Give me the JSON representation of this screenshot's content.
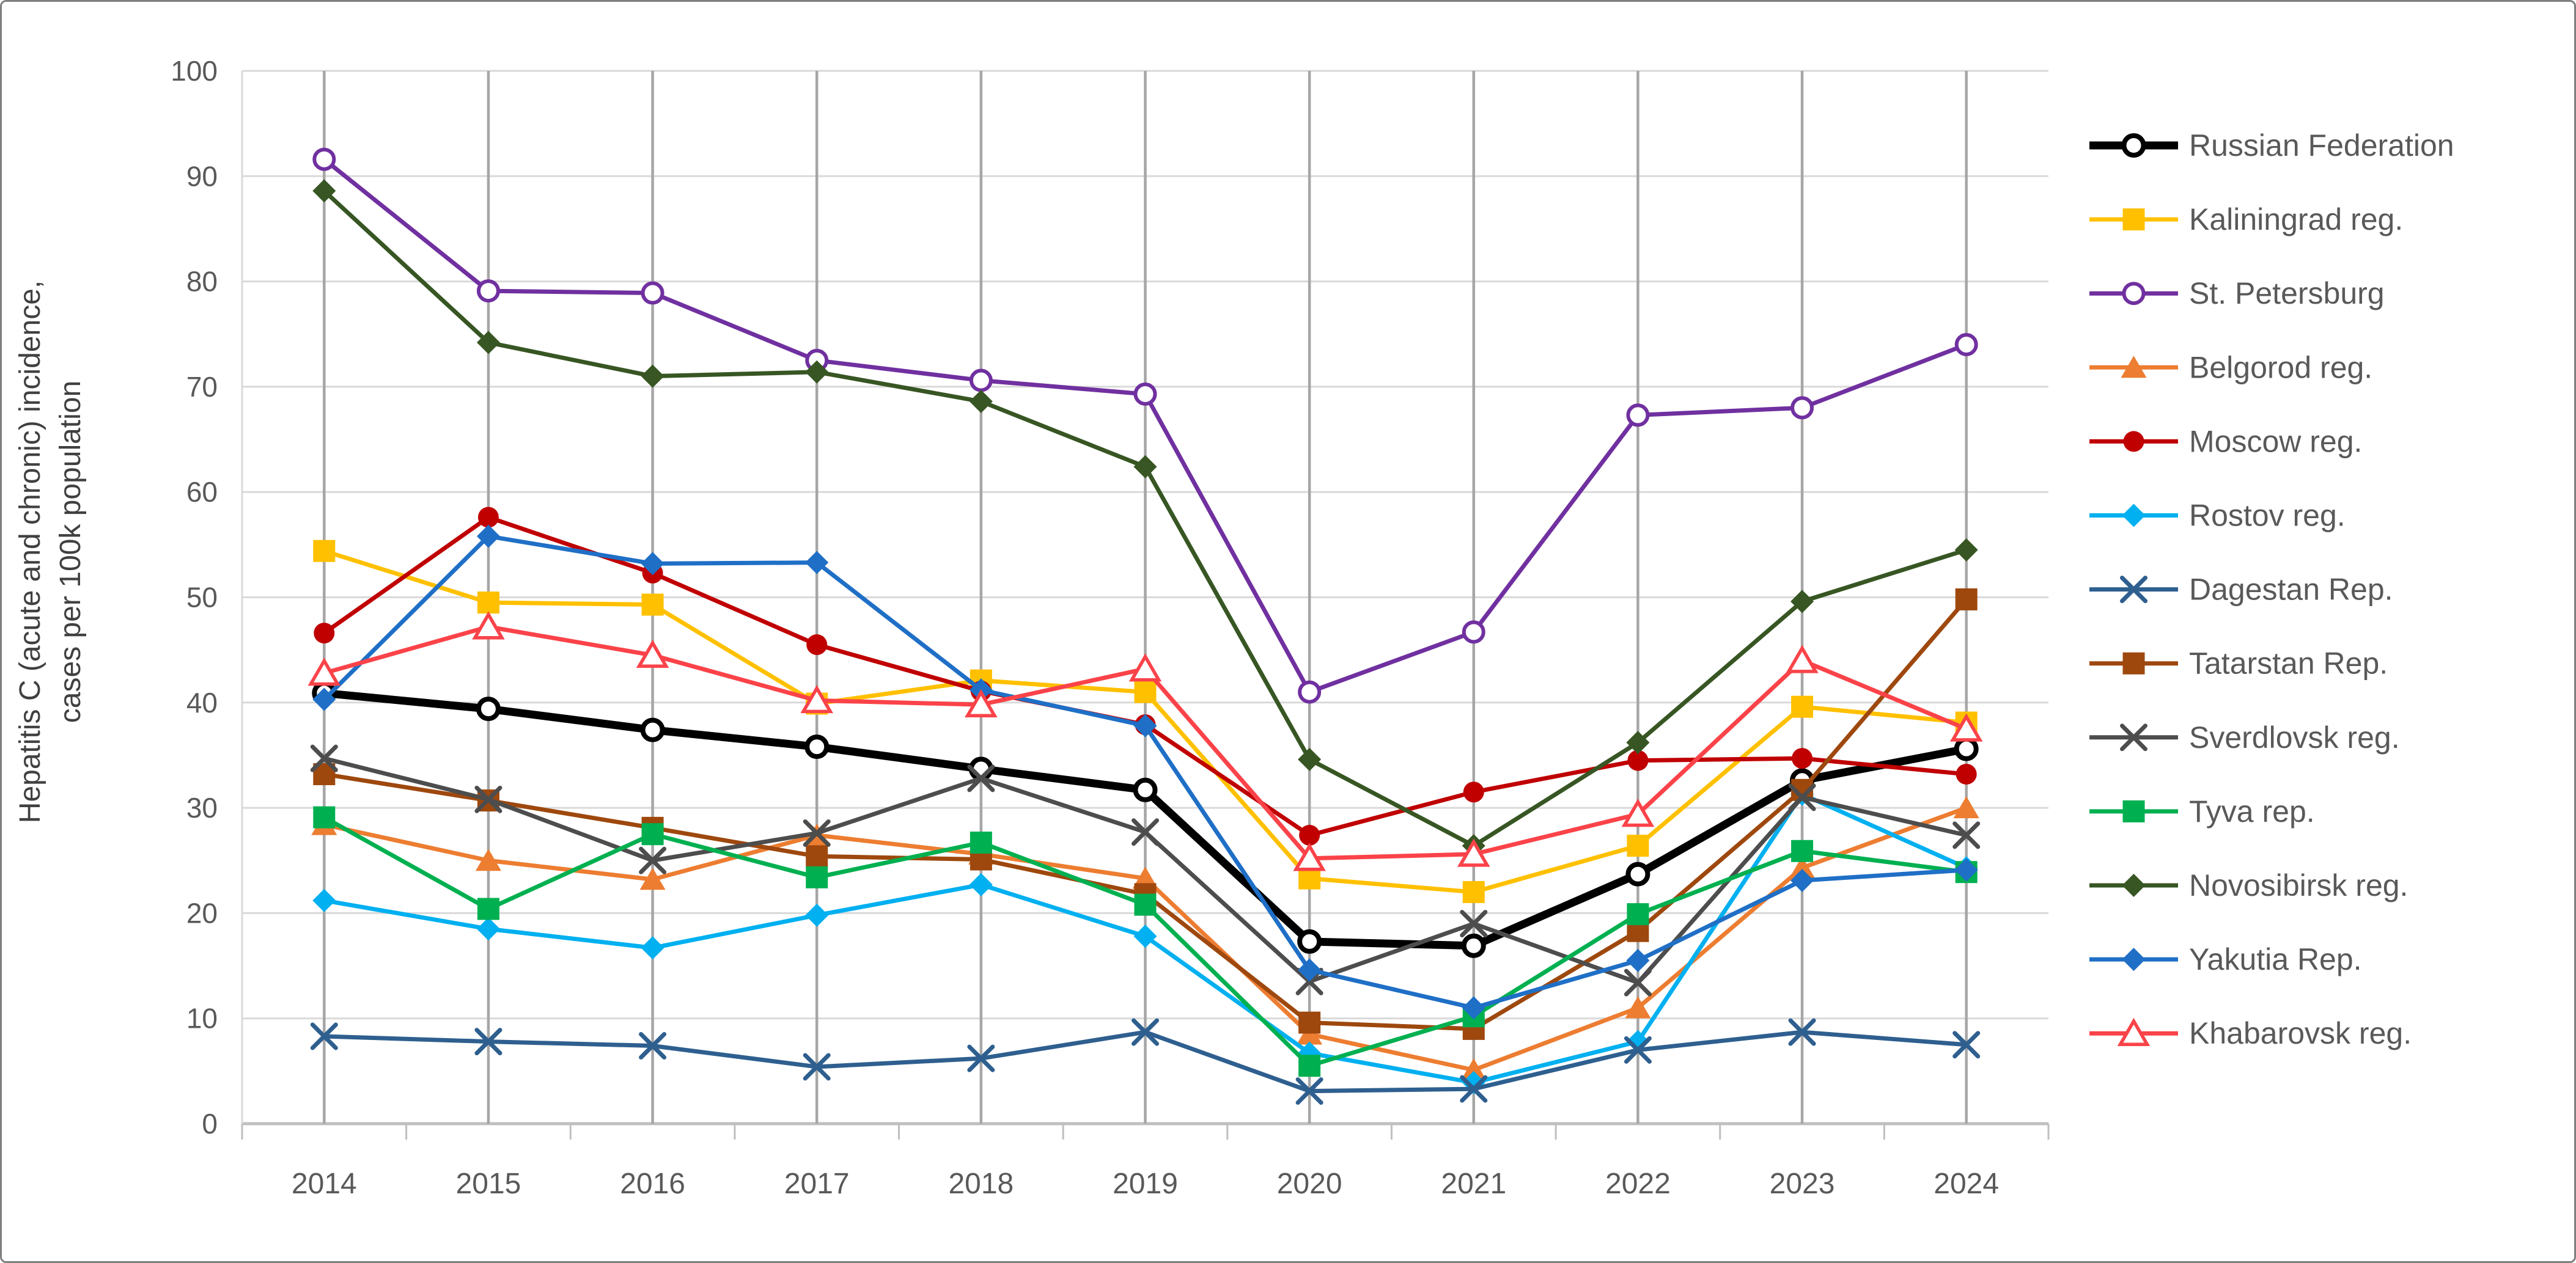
{
  "chart_data": {
    "type": "line",
    "title": "",
    "ylabel_line1": "Hepatitis C (acute and chronic)  incidence,",
    "ylabel_line2": "cases per 100k population",
    "xlabel": "",
    "x_labels": [
      "2014",
      "2015",
      "2016",
      "2017",
      "2018",
      "2019",
      "2020",
      "2021",
      "2022",
      "2023",
      "2024"
    ],
    "y_ticks": [
      "0",
      "10",
      "20",
      "30",
      "40",
      "50",
      "60",
      "70",
      "80",
      "90",
      "100"
    ],
    "ylim": [
      0,
      100
    ],
    "grid": "horizontal gridlines every 10 plus vertical gray line at each year",
    "legend_position": "right",
    "series": [
      {
        "name": "Russian Federation",
        "color": "#000000",
        "marker": "open-circle",
        "line_width": 13,
        "values": [
          40.9,
          39.4,
          37.4,
          35.8,
          33.7,
          31.7,
          17.3,
          16.9,
          23.7,
          32.6,
          35.6
        ]
      },
      {
        "name": "Kaliningrad reg.",
        "color": "#FFC000",
        "marker": "square",
        "line_width": 7,
        "values": [
          54.4,
          49.5,
          49.3,
          39.9,
          42.1,
          41.0,
          23.3,
          22.0,
          26.4,
          39.6,
          38.1
        ]
      },
      {
        "name": "St. Petersburg",
        "color": "#7030A0",
        "marker": "open-circle",
        "line_width": 7,
        "values": [
          91.6,
          79.1,
          78.9,
          72.5,
          70.6,
          69.3,
          41.0,
          46.7,
          67.3,
          68.0,
          74.0
        ]
      },
      {
        "name": "Belgorod reg.",
        "color": "#ED7D31",
        "marker": "triangle",
        "line_width": 7,
        "values": [
          28.4,
          25.0,
          23.2,
          27.4,
          25.6,
          23.3,
          8.5,
          5.1,
          11.0,
          24.3,
          30.0
        ]
      },
      {
        "name": "Moscow reg.",
        "color": "#C00000",
        "marker": "circle",
        "line_width": 7,
        "values": [
          46.6,
          57.6,
          52.3,
          45.5,
          41.1,
          37.9,
          27.4,
          31.5,
          34.5,
          34.7,
          33.2
        ]
      },
      {
        "name": "Rostov reg.",
        "color": "#00B0F0",
        "marker": "diamond",
        "line_width": 7,
        "values": [
          21.2,
          18.5,
          16.7,
          19.8,
          22.7,
          17.8,
          6.7,
          3.9,
          7.8,
          31.3,
          24.3
        ]
      },
      {
        "name": "Dagestan Rep.",
        "color": "#2E5F8F",
        "marker": "x",
        "line_width": 7,
        "values": [
          8.3,
          7.8,
          7.4,
          5.4,
          6.2,
          8.7,
          3.1,
          3.3,
          7.0,
          8.7,
          7.5
        ]
      },
      {
        "name": "Tatarstan Rep.",
        "color": "#9E480E",
        "marker": "square",
        "line_width": 7,
        "values": [
          33.2,
          30.7,
          28.1,
          25.4,
          25.1,
          21.8,
          9.6,
          9.0,
          18.3,
          31.7,
          49.8
        ]
      },
      {
        "name": "Sverdlovsk reg.",
        "color": "#4D4D4D",
        "marker": "x",
        "line_width": 7,
        "values": [
          34.7,
          30.8,
          25.0,
          27.6,
          32.8,
          27.7,
          13.5,
          19.0,
          13.4,
          31.0,
          27.4
        ]
      },
      {
        "name": "Tyva rep.",
        "color": "#00B050",
        "marker": "square",
        "line_width": 7,
        "values": [
          29.1,
          20.4,
          27.5,
          23.4,
          26.7,
          20.8,
          5.5,
          10.2,
          19.9,
          25.9,
          23.9
        ]
      },
      {
        "name": "Novosibirsk reg.",
        "color": "#375623",
        "marker": "diamond",
        "line_width": 7,
        "values": [
          88.6,
          74.2,
          71.0,
          71.4,
          68.6,
          62.4,
          34.6,
          26.4,
          36.2,
          49.6,
          54.5
        ]
      },
      {
        "name": "Yakutia Rep.",
        "color": "#1F6FC6",
        "marker": "diamond",
        "line_width": 7,
        "values": [
          40.3,
          55.8,
          53.2,
          53.3,
          41.2,
          37.8,
          14.6,
          11.0,
          15.5,
          23.1,
          24.1
        ]
      },
      {
        "name": "Khabarovsk reg.",
        "color": "#FA4349",
        "marker": "open-triangle",
        "line_width": 7,
        "values": [
          42.8,
          47.2,
          44.5,
          40.2,
          39.8,
          43.2,
          25.2,
          25.6,
          29.4,
          44.0,
          37.5
        ]
      }
    ]
  },
  "style": {
    "gridline_color": "#D9D9D9",
    "axis_line_color": "#BFBFBF",
    "category_line_color": "#A6A6A6",
    "tick_label_color": "#595959",
    "axis_title_color": "#404040",
    "legend_text_color": "#595959",
    "background": "#FFFFFF",
    "border_color": "#7F7F7F"
  }
}
